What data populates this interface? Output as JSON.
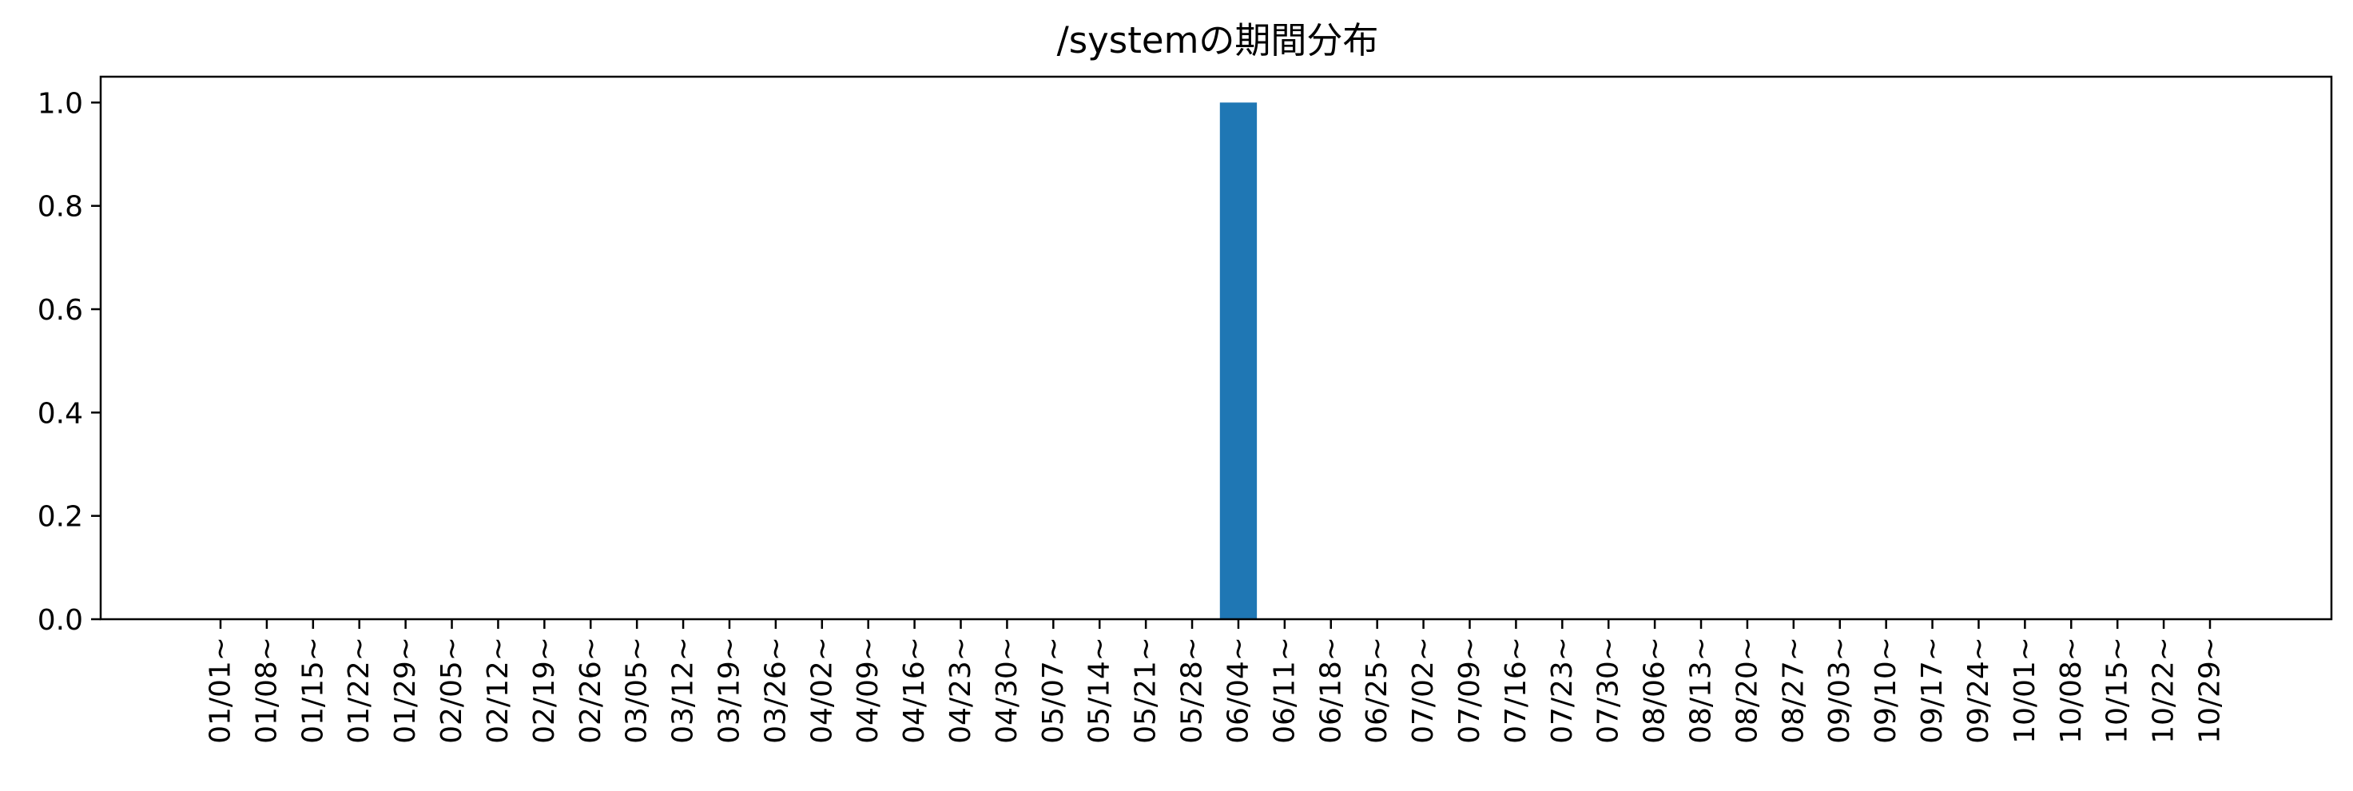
{
  "chart_data": {
    "type": "bar",
    "title": "/systemの期間分布",
    "xlabel": "",
    "ylabel": "",
    "categories": [
      "01/01~",
      "01/08~",
      "01/15~",
      "01/22~",
      "01/29~",
      "02/05~",
      "02/12~",
      "02/19~",
      "02/26~",
      "03/05~",
      "03/12~",
      "03/19~",
      "03/26~",
      "04/02~",
      "04/09~",
      "04/16~",
      "04/23~",
      "04/30~",
      "05/07~",
      "05/14~",
      "05/21~",
      "05/28~",
      "06/04~",
      "06/11~",
      "06/18~",
      "06/25~",
      "07/02~",
      "07/09~",
      "07/16~",
      "07/23~",
      "07/30~",
      "08/06~",
      "08/13~",
      "08/20~",
      "08/27~",
      "09/03~",
      "09/10~",
      "09/17~",
      "09/24~",
      "10/01~",
      "10/08~",
      "10/15~",
      "10/22~",
      "10/29~"
    ],
    "values": [
      0,
      0,
      0,
      0,
      0,
      0,
      0,
      0,
      0,
      0,
      0,
      0,
      0,
      0,
      0,
      0,
      0,
      0,
      0,
      0,
      0,
      0,
      1,
      0,
      0,
      0,
      0,
      0,
      0,
      0,
      0,
      0,
      0,
      0,
      0,
      0,
      0,
      0,
      0,
      0,
      0,
      0,
      0,
      0
    ],
    "yticks": [
      "0.0",
      "0.2",
      "0.4",
      "0.6",
      "0.8",
      "1.0"
    ],
    "ylim": [
      0,
      1.05
    ],
    "grid": false,
    "bar_color": "#1f77b4"
  }
}
